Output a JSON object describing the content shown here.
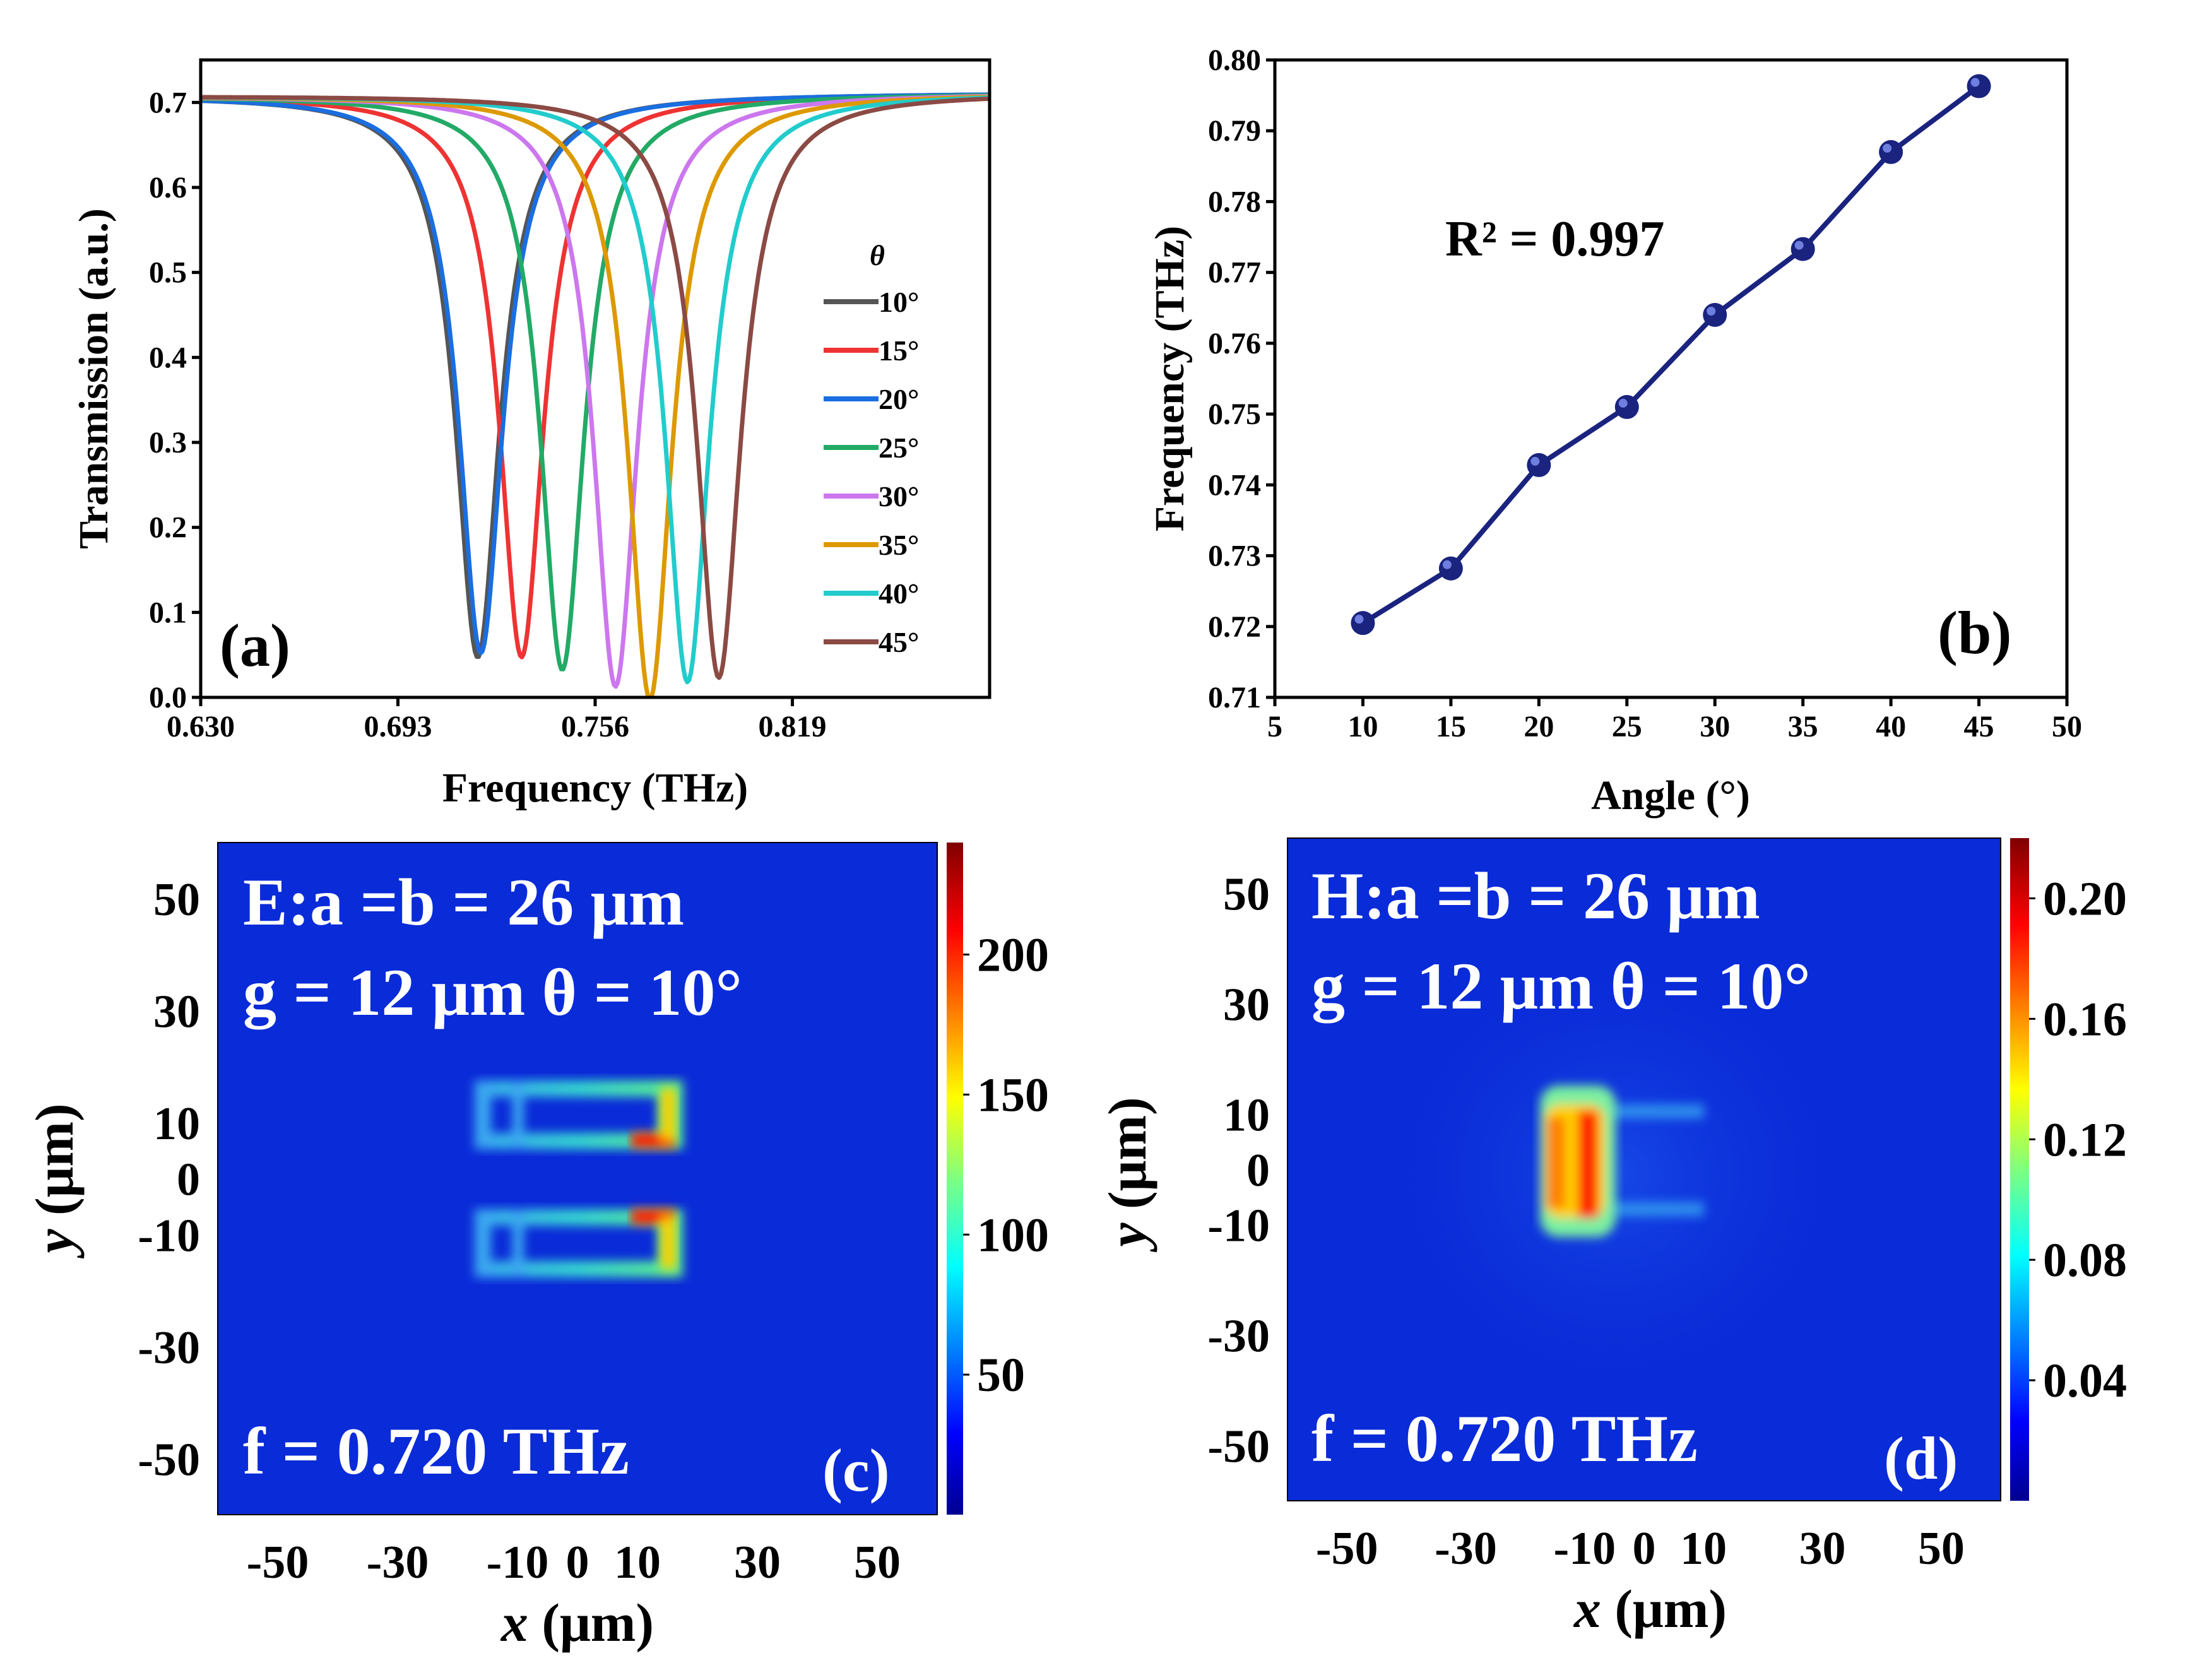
{
  "chart_data": [
    {
      "panel": "a",
      "type": "line",
      "panel_label": "(a)",
      "xlabel": "Frequency (THz)",
      "ylabel": "Transmission (a.u.)",
      "xlim": [
        0.63,
        0.882
      ],
      "ylim": [
        0.0,
        0.75
      ],
      "xticks": [
        "0.630",
        "0.693",
        "0.756",
        "0.819"
      ],
      "yticks": [
        "0.0",
        "0.1",
        "0.2",
        "0.3",
        "0.4",
        "0.5",
        "0.6",
        "0.7"
      ],
      "legend_title": "θ",
      "legend_position": "right",
      "baseline": 0.712,
      "series": [
        {
          "name": "10°",
          "color": "#555555",
          "dip_frequency": 0.7185,
          "dip_min": 0.05,
          "width": 0.0085
        },
        {
          "name": "15°",
          "color": "#ee3333",
          "dip_frequency": 0.7325,
          "dip_min": 0.05,
          "width": 0.0085
        },
        {
          "name": "20°",
          "color": "#1a6ee0",
          "dip_frequency": 0.7195,
          "dip_min": 0.055,
          "width": 0.0085
        },
        {
          "name": "25°",
          "color": "#22aa66",
          "dip_frequency": 0.7455,
          "dip_min": 0.035,
          "width": 0.0085
        },
        {
          "name": "30°",
          "color": "#cc77ee",
          "dip_frequency": 0.7625,
          "dip_min": 0.015,
          "width": 0.0085
        },
        {
          "name": "35°",
          "color": "#dd9900",
          "dip_frequency": 0.7735,
          "dip_min": 0.0,
          "width": 0.0085
        },
        {
          "name": "40°",
          "color": "#22cccc",
          "dip_frequency": 0.7855,
          "dip_min": 0.02,
          "width": 0.0085
        },
        {
          "name": "45°",
          "color": "#8b4a44",
          "dip_frequency": 0.7955,
          "dip_min": 0.025,
          "width": 0.0085
        }
      ]
    },
    {
      "panel": "b",
      "type": "line",
      "panel_label": "(b)",
      "xlabel": "Angle (°)",
      "ylabel": "Frequency (THz)",
      "xlim": [
        5,
        50
      ],
      "ylim": [
        0.71,
        0.8
      ],
      "xticks": [
        "5",
        "10",
        "15",
        "20",
        "25",
        "30",
        "35",
        "40",
        "45",
        "50"
      ],
      "yticks": [
        "0.71",
        "0.72",
        "0.73",
        "0.74",
        "0.75",
        "0.76",
        "0.77",
        "0.78",
        "0.79",
        "0.80"
      ],
      "annotation": "R² = 0.997",
      "line_color": "#1a237e",
      "x": [
        10,
        15,
        20,
        25,
        30,
        35,
        40,
        45
      ],
      "y": [
        0.7205,
        0.7282,
        0.7428,
        0.751,
        0.764,
        0.7733,
        0.787,
        0.7963
      ]
    },
    {
      "panel": "c",
      "type": "heatmap",
      "panel_label": "(c)",
      "field": "E",
      "text_line1": "E:a =b = 26 μm",
      "text_line2": "g = 12 μm θ = 10°",
      "text_freq": "f = 0.720 THz",
      "xlabel": "x (μm)",
      "ylabel": "y (μm)",
      "xticks": [
        "-50",
        "-30",
        "-10",
        "0",
        "10",
        "30",
        "50"
      ],
      "yticks": [
        "50",
        "30",
        "10",
        "0",
        "-10",
        "-30",
        "-50"
      ],
      "colorbar_ticks": [
        "200",
        "150",
        "100",
        "50"
      ],
      "colorbar_range": [
        0,
        240
      ]
    },
    {
      "panel": "d",
      "type": "heatmap",
      "panel_label": "(d)",
      "field": "H",
      "text_line1": "H:a =b = 26 μm",
      "text_line2": "g = 12 μm θ = 10°",
      "text_freq": "f = 0.720 THz",
      "xlabel": "x (μm)",
      "ylabel": "y (μm)",
      "xticks": [
        "-50",
        "-30",
        "-10",
        "0",
        "10",
        "30",
        "50"
      ],
      "yticks": [
        "50",
        "30",
        "10",
        "0",
        "-10",
        "-30",
        "-50"
      ],
      "colorbar_ticks": [
        "0.20",
        "0.16",
        "0.12",
        "0.08",
        "0.04"
      ],
      "colorbar_range": [
        0,
        0.22
      ]
    }
  ]
}
